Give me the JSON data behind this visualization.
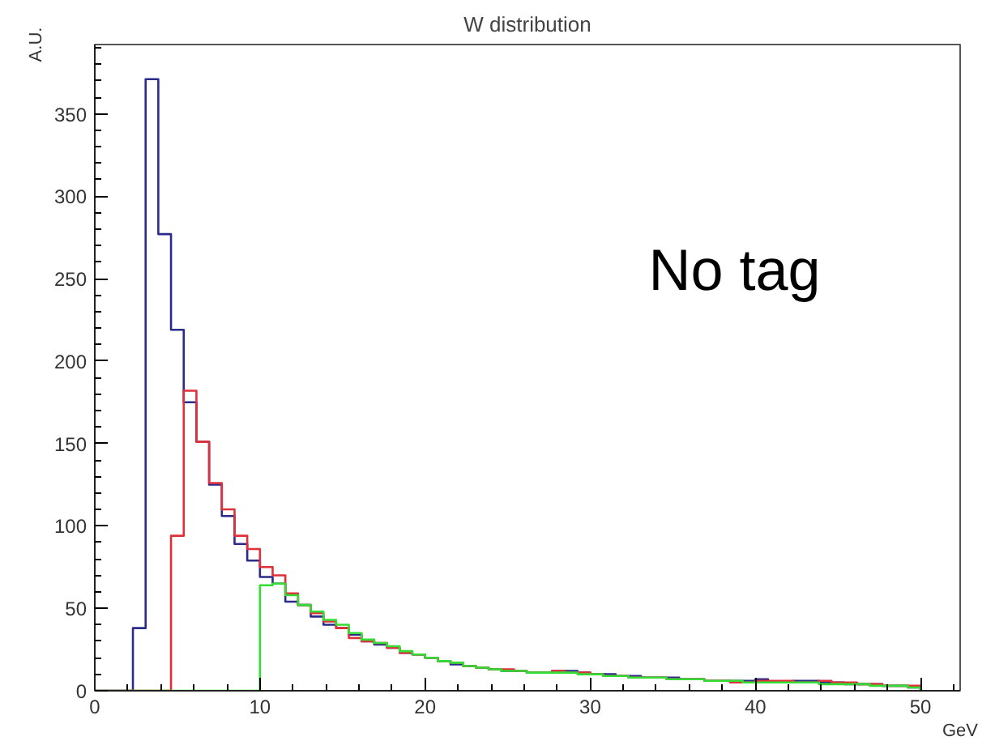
{
  "chart_data": {
    "type": "histogram",
    "title": "W distribution",
    "xlabel": "GeV",
    "ylabel": "A.U.",
    "annotations": [
      "No tag"
    ],
    "xlim": [
      0,
      52.4
    ],
    "ylim": [
      0,
      392
    ],
    "xticks": [
      0,
      10,
      20,
      30,
      40,
      50
    ],
    "yticks": [
      0,
      50,
      100,
      150,
      200,
      250,
      300,
      350
    ],
    "bins": [
      0,
      0.769,
      1.538,
      2.308,
      3.077,
      3.846,
      4.615,
      5.385,
      6.154,
      6.923,
      7.692,
      8.462,
      9.231,
      10,
      10.769,
      11.538,
      12.308,
      13.077,
      13.846,
      14.615,
      15.385,
      16.154,
      16.923,
      17.692,
      18.462,
      19.231,
      20,
      20.769,
      21.538,
      22.308,
      23.077,
      23.846,
      24.615,
      25.385,
      26.154,
      26.923,
      27.692,
      28.462,
      29.231,
      30,
      30.769,
      31.538,
      32.308,
      33.077,
      33.846,
      34.615,
      35.385,
      36.154,
      36.923,
      37.692,
      38.462,
      39.231,
      40,
      40.769,
      41.538,
      42.308,
      43.077,
      43.846,
      44.615,
      45.385,
      46.154,
      46.923,
      47.692,
      48.462,
      49.231,
      50
    ],
    "series": [
      {
        "color": "#2b2b8c",
        "values": [
          0,
          0,
          0,
          38,
          371,
          277,
          219,
          175,
          151,
          125,
          106,
          89,
          79,
          69,
          65,
          54,
          52,
          45,
          40,
          38,
          34,
          30,
          28,
          26,
          23,
          22,
          20,
          18,
          16,
          15,
          14,
          13,
          12,
          12,
          11,
          11,
          12,
          12,
          11,
          10,
          10,
          9,
          9,
          8,
          8,
          8,
          7,
          7,
          6,
          6,
          6,
          6,
          7,
          5,
          5,
          6,
          6,
          5,
          5,
          4,
          4,
          4,
          3,
          3,
          2
        ]
      },
      {
        "color": "#e0303a",
        "values": [
          0,
          0,
          0,
          0,
          0,
          0,
          94,
          182,
          151,
          126,
          110,
          94,
          86,
          75,
          70,
          59,
          52,
          47,
          42,
          38,
          32,
          30,
          29,
          26,
          23,
          22,
          20,
          18,
          17,
          15,
          14,
          13,
          13,
          12,
          11,
          11,
          12,
          11,
          11,
          10,
          9,
          9,
          8,
          8,
          8,
          7,
          7,
          7,
          6,
          6,
          5,
          5,
          6,
          6,
          6,
          5,
          5,
          6,
          5,
          5,
          4,
          4,
          3,
          3,
          3
        ]
      },
      {
        "color": "#33dd33",
        "values": [
          0,
          0,
          0,
          0,
          0,
          0,
          0,
          0,
          0,
          0,
          0,
          0,
          0,
          64,
          65,
          58,
          52,
          48,
          43,
          40,
          35,
          31,
          29,
          27,
          24,
          22,
          20,
          18,
          17,
          15,
          14,
          13,
          12,
          12,
          11,
          11,
          11,
          11,
          10,
          10,
          9,
          9,
          8,
          8,
          8,
          7,
          7,
          7,
          6,
          6,
          6,
          5,
          5,
          5,
          5,
          5,
          5,
          4,
          4,
          4,
          4,
          3,
          3,
          3,
          2
        ]
      }
    ]
  }
}
